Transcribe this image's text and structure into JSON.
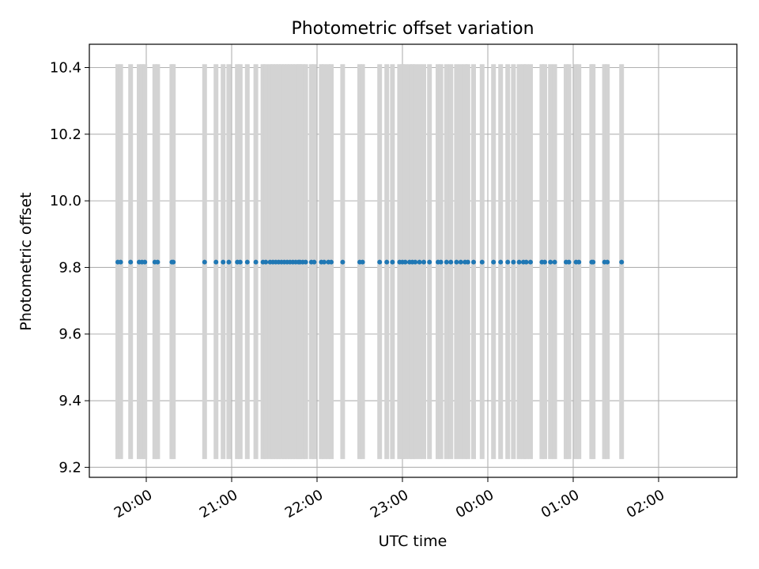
{
  "chart_data": {
    "type": "scatter",
    "title": "Photometric offset variation",
    "xlabel": "UTC time",
    "ylabel": "Photometric offset",
    "x_axis": "time",
    "xlim": [
      "19:20",
      "02:55"
    ],
    "ylim": [
      9.17,
      10.47
    ],
    "grid": true,
    "xtick_labels": [
      "20:00",
      "21:00",
      "22:00",
      "23:00",
      "00:00",
      "01:00",
      "02:00"
    ],
    "ytick_labels": [
      "9.2",
      "9.4",
      "9.6",
      "9.8",
      "10.0",
      "10.2",
      "10.4"
    ],
    "yticks": [
      9.2,
      9.4,
      9.6,
      9.8,
      10.0,
      10.2,
      10.4
    ],
    "points": {
      "color": "#1f77b4",
      "y": 9.816,
      "x": [
        "19:40",
        "19:42",
        "19:49",
        "19:55",
        "19:57",
        "19:59",
        "20:06",
        "20:08",
        "20:18",
        "20:19",
        "20:41",
        "20:49",
        "20:54",
        "20:58",
        "21:04",
        "21:06",
        "21:11",
        "21:17",
        "21:22",
        "21:24",
        "21:27",
        "21:29",
        "21:31",
        "21:33",
        "21:35",
        "21:37",
        "21:39",
        "21:41",
        "21:43",
        "21:45",
        "21:47",
        "21:48",
        "21:50",
        "21:52",
        "21:56",
        "21:58",
        "22:03",
        "22:05",
        "22:08",
        "22:10",
        "22:18",
        "22:30",
        "22:32",
        "22:44",
        "22:49",
        "22:53",
        "22:58",
        "23:00",
        "23:02",
        "23:05",
        "23:07",
        "23:09",
        "23:12",
        "23:15",
        "23:19",
        "23:25",
        "23:27",
        "23:31",
        "23:34",
        "23:38",
        "23:41",
        "23:44",
        "23:46",
        "23:50",
        "23:56",
        "24:04",
        "24:09",
        "24:14",
        "24:18",
        "24:22",
        "24:25",
        "24:27",
        "24:30",
        "24:38",
        "24:40",
        "24:44",
        "24:47",
        "24:55",
        "24:57",
        "25:02",
        "25:04",
        "25:13",
        "25:14",
        "25:22",
        "25:24",
        "25:34"
      ]
    },
    "errorbars": {
      "color": "#d3d3d3",
      "low": 9.225,
      "high": 10.41
    }
  }
}
